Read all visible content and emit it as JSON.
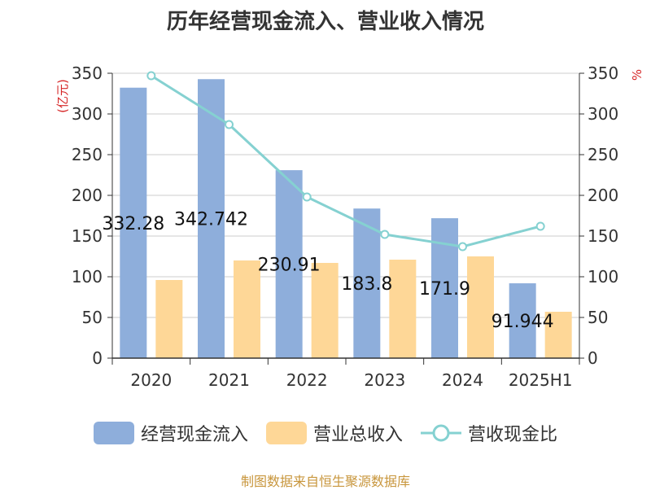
{
  "title": "历年经营现金流入、营业收入情况",
  "footer": "制图数据来自恒生聚源数据库",
  "colors": {
    "cash": "#8eaedb",
    "revenue": "#fed797",
    "ratio": "#85d1d1",
    "unit": "#d62728",
    "axis": "#333333",
    "grid": "#cccccc"
  },
  "chart_data": {
    "type": "bar",
    "categories": [
      "2020",
      "2021",
      "2022",
      "2023",
      "2024",
      "2025H1"
    ],
    "series": [
      {
        "name": "经营现金流入",
        "type": "bar",
        "axis": "left",
        "values": [
          332.28,
          342.742,
          230.91,
          183.8,
          171.9,
          91.944
        ],
        "labels": [
          "332.28",
          "342.742",
          "230.91",
          "183.8",
          "171.9",
          "91.944"
        ]
      },
      {
        "name": "营业总收入",
        "type": "bar",
        "axis": "left",
        "values": [
          96,
          120,
          117,
          121,
          125,
          57
        ]
      },
      {
        "name": "营收现金比",
        "type": "line",
        "axis": "right",
        "values": [
          347,
          287,
          198,
          152,
          137,
          162
        ]
      }
    ],
    "left_axis": {
      "unit": "(亿元)",
      "ticks": [
        0,
        50,
        100,
        150,
        200,
        250,
        300,
        350
      ],
      "ylim": [
        0,
        350
      ]
    },
    "right_axis": {
      "unit": "%",
      "ticks": [
        0,
        50,
        100,
        150,
        200,
        250,
        300,
        350
      ],
      "ylim": [
        0,
        350
      ]
    },
    "grid": true,
    "legend_position": "bottom"
  }
}
